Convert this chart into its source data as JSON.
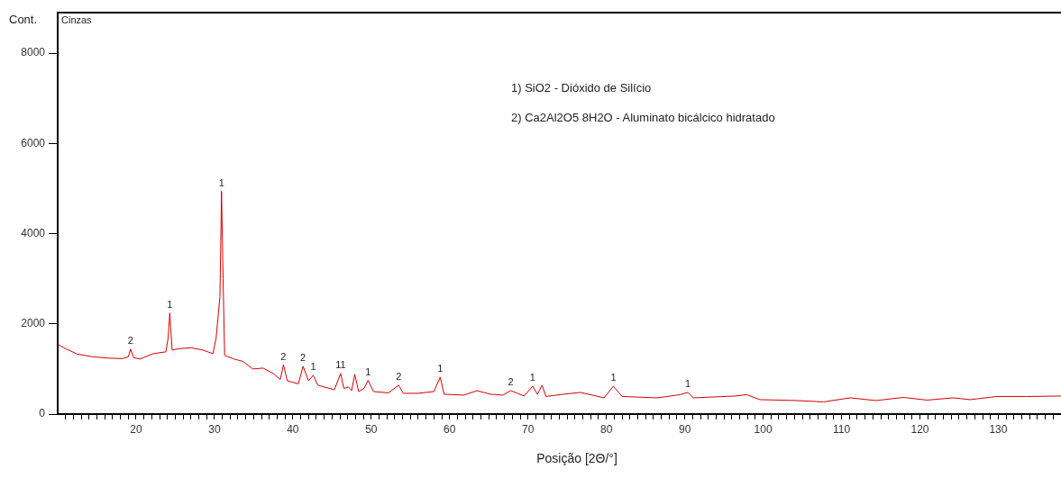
{
  "chart_data": {
    "type": "line",
    "title": "Cinzas",
    "xlabel": "Posição [2Θ/°]",
    "ylabel": "Cont.",
    "x": [
      10,
      11,
      12.5,
      14.5,
      16.5,
      18.3,
      19.0,
      19.3,
      19.7,
      20.5,
      22.2,
      23.8,
      24.1,
      24.3,
      24.6,
      25.5,
      27,
      28.5,
      29.8,
      30.2,
      30.7,
      30.9,
      31.1,
      31.3,
      32.5,
      33.6,
      34.9,
      36.2,
      37.5,
      38.4,
      38.8,
      39.3,
      40.7,
      41.3,
      42.0,
      42.6,
      43.2,
      45.3,
      46.1,
      46.5,
      47.1,
      47.5,
      47.9,
      48.4,
      49.1,
      49.6,
      50.3,
      52.2,
      53.5,
      54.1,
      56.0,
      58.0,
      58.8,
      59.3,
      61.8,
      63.5,
      65.2,
      66.8,
      67.8,
      69.5,
      70.6,
      71.2,
      71.8,
      72.3,
      74.5,
      76.7,
      79.7,
      80.9,
      82.0,
      86.5,
      89.4,
      90.4,
      91.1,
      96.4,
      97.9,
      99.6,
      104.3,
      107.7,
      111.1,
      114.4,
      117.9,
      120.9,
      124.3,
      126.4,
      129.8,
      133.6,
      138
    ],
    "series": [
      {
        "color": "#d40000",
        "values": [
          1550,
          1450,
          1330,
          1270,
          1240,
          1230,
          1270,
          1440,
          1250,
          1220,
          1340,
          1380,
          1700,
          2240,
          1420,
          1450,
          1470,
          1420,
          1340,
          1670,
          2600,
          4940,
          3000,
          1300,
          1220,
          1170,
          1000,
          1020,
          900,
          770,
          1090,
          740,
          670,
          1060,
          740,
          860,
          640,
          540,
          900,
          570,
          600,
          520,
          880,
          500,
          570,
          750,
          500,
          470,
          640,
          460,
          460,
          500,
          820,
          440,
          420,
          520,
          440,
          420,
          520,
          400,
          620,
          440,
          640,
          390,
          440,
          480,
          360,
          620,
          390,
          360,
          430,
          480,
          360,
          400,
          430,
          320,
          300,
          270,
          360,
          300,
          370,
          310,
          360,
          320,
          390,
          390,
          400
        ]
      }
    ],
    "xlim": [
      10,
      138
    ],
    "ylim": [
      0,
      8900
    ],
    "xticks": [
      {
        "value": 11,
        "label": null
      },
      {
        "value": 12,
        "label": null
      },
      {
        "value": 13,
        "label": null
      },
      {
        "value": 14,
        "label": null
      },
      {
        "value": 15,
        "label": null
      },
      {
        "value": 16,
        "label": null
      },
      {
        "value": 17,
        "label": null
      },
      {
        "value": 18,
        "label": null
      },
      {
        "value": 19,
        "label": null
      },
      20,
      {
        "value": 21,
        "label": null
      },
      {
        "value": 22,
        "label": null
      },
      {
        "value": 23,
        "label": null
      },
      {
        "value": 24,
        "label": null
      },
      {
        "value": 25,
        "label": null
      },
      {
        "value": 26,
        "label": null
      },
      {
        "value": 27,
        "label": null
      },
      {
        "value": 28,
        "label": null
      },
      {
        "value": 29,
        "label": null
      },
      30,
      {
        "value": 31,
        "label": null
      },
      {
        "value": 32,
        "label": null
      },
      {
        "value": 33,
        "label": null
      },
      {
        "value": 34,
        "label": null
      },
      {
        "value": 35,
        "label": null
      },
      {
        "value": 36,
        "label": null
      },
      {
        "value": 37,
        "label": null
      },
      {
        "value": 38,
        "label": null
      },
      {
        "value": 39,
        "label": null
      },
      40,
      {
        "value": 41,
        "label": null
      },
      {
        "value": 42,
        "label": null
      },
      {
        "value": 43,
        "label": null
      },
      {
        "value": 44,
        "label": null
      },
      {
        "value": 45,
        "label": null
      },
      {
        "value": 46,
        "label": null
      },
      {
        "value": 47,
        "label": null
      },
      {
        "value": 48,
        "label": null
      },
      {
        "value": 49,
        "label": null
      },
      50,
      {
        "value": 51,
        "label": null
      },
      {
        "value": 52,
        "label": null
      },
      {
        "value": 53,
        "label": null
      },
      {
        "value": 54,
        "label": null
      },
      {
        "value": 55,
        "label": null
      },
      {
        "value": 56,
        "label": null
      },
      {
        "value": 57,
        "label": null
      },
      {
        "value": 58,
        "label": null
      },
      {
        "value": 59,
        "label": null
      },
      60,
      {
        "value": 61,
        "label": null
      },
      {
        "value": 62,
        "label": null
      },
      {
        "value": 63,
        "label": null
      },
      {
        "value": 64,
        "label": null
      },
      {
        "value": 65,
        "label": null
      },
      {
        "value": 66,
        "label": null
      },
      {
        "value": 67,
        "label": null
      },
      {
        "value": 68,
        "label": null
      },
      {
        "value": 69,
        "label": null
      },
      70,
      {
        "value": 71,
        "label": null
      },
      {
        "value": 72,
        "label": null
      },
      {
        "value": 73,
        "label": null
      },
      {
        "value": 74,
        "label": null
      },
      {
        "value": 75,
        "label": null
      },
      {
        "value": 76,
        "label": null
      },
      {
        "value": 77,
        "label": null
      },
      {
        "value": 78,
        "label": null
      },
      {
        "value": 79,
        "label": null
      },
      80,
      {
        "value": 81,
        "label": null
      },
      {
        "value": 82,
        "label": null
      },
      {
        "value": 83,
        "label": null
      },
      {
        "value": 84,
        "label": null
      },
      {
        "value": 85,
        "label": null
      },
      {
        "value": 86,
        "label": null
      },
      {
        "value": 87,
        "label": null
      },
      {
        "value": 88,
        "label": null
      },
      {
        "value": 89,
        "label": null
      },
      90,
      {
        "value": 91,
        "label": null
      },
      {
        "value": 92,
        "label": null
      },
      {
        "value": 93,
        "label": null
      },
      {
        "value": 94,
        "label": null
      },
      {
        "value": 95,
        "label": null
      },
      {
        "value": 96,
        "label": null
      },
      {
        "value": 97,
        "label": null
      },
      {
        "value": 98,
        "label": null
      },
      {
        "value": 99,
        "label": null
      },
      100,
      {
        "value": 101,
        "label": null
      },
      {
        "value": 102,
        "label": null
      },
      {
        "value": 103,
        "label": null
      },
      {
        "value": 104,
        "label": null
      },
      {
        "value": 105,
        "label": null
      },
      {
        "value": 106,
        "label": null
      },
      {
        "value": 107,
        "label": null
      },
      {
        "value": 108,
        "label": null
      },
      {
        "value": 109,
        "label": null
      },
      110,
      {
        "value": 111,
        "label": null
      },
      {
        "value": 112,
        "label": null
      },
      {
        "value": 113,
        "label": null
      },
      {
        "value": 114,
        "label": null
      },
      {
        "value": 115,
        "label": null
      },
      {
        "value": 116,
        "label": null
      },
      {
        "value": 117,
        "label": null
      },
      {
        "value": 118,
        "label": null
      },
      {
        "value": 119,
        "label": null
      },
      120,
      {
        "value": 121,
        "label": null
      },
      {
        "value": 122,
        "label": null
      },
      {
        "value": 123,
        "label": null
      },
      {
        "value": 124,
        "label": null
      },
      {
        "value": 125,
        "label": null
      },
      {
        "value": 126,
        "label": null
      },
      {
        "value": 127,
        "label": null
      },
      {
        "value": 128,
        "label": null
      },
      {
        "value": 129,
        "label": null
      },
      130,
      {
        "value": 131,
        "label": null
      },
      {
        "value": 132,
        "label": null
      },
      {
        "value": 133,
        "label": null
      },
      {
        "value": 134,
        "label": null
      },
      {
        "value": 135,
        "label": null
      },
      {
        "value": 136,
        "label": null
      },
      {
        "value": 137,
        "label": null
      }
    ],
    "yticks": [
      0,
      2000,
      4000,
      6000,
      8000
    ],
    "marker": "none",
    "line_style": "solid",
    "annotations": [
      "1) SiO2 - Dióxido de Silício",
      "2) Ca2Al2O5 8H2O - Aluminato bicálcico hidratado",
      {
        "text": "2",
        "x": 19.3,
        "y": 1440
      },
      {
        "text": "1",
        "x": 24.3,
        "y": 2240
      },
      {
        "text": "1",
        "x": 30.9,
        "y": 4940
      },
      {
        "text": "2",
        "x": 38.8,
        "y": 1090
      },
      {
        "text": "2",
        "x": 41.3,
        "y": 1060
      },
      {
        "text": "1",
        "x": 42.6,
        "y": 860
      },
      {
        "text": "11",
        "x": 46.1,
        "y": 900
      },
      {
        "text": "1",
        "x": 49.6,
        "y": 750
      },
      {
        "text": "2",
        "x": 53.5,
        "y": 640
      },
      {
        "text": "1",
        "x": 58.8,
        "y": 820
      },
      {
        "text": "2",
        "x": 67.8,
        "y": 525
      },
      {
        "text": "1",
        "x": 70.6,
        "y": 620
      },
      {
        "text": "1",
        "x": 80.9,
        "y": 620
      },
      {
        "text": "1",
        "x": 90.4,
        "y": 480
      }
    ]
  }
}
